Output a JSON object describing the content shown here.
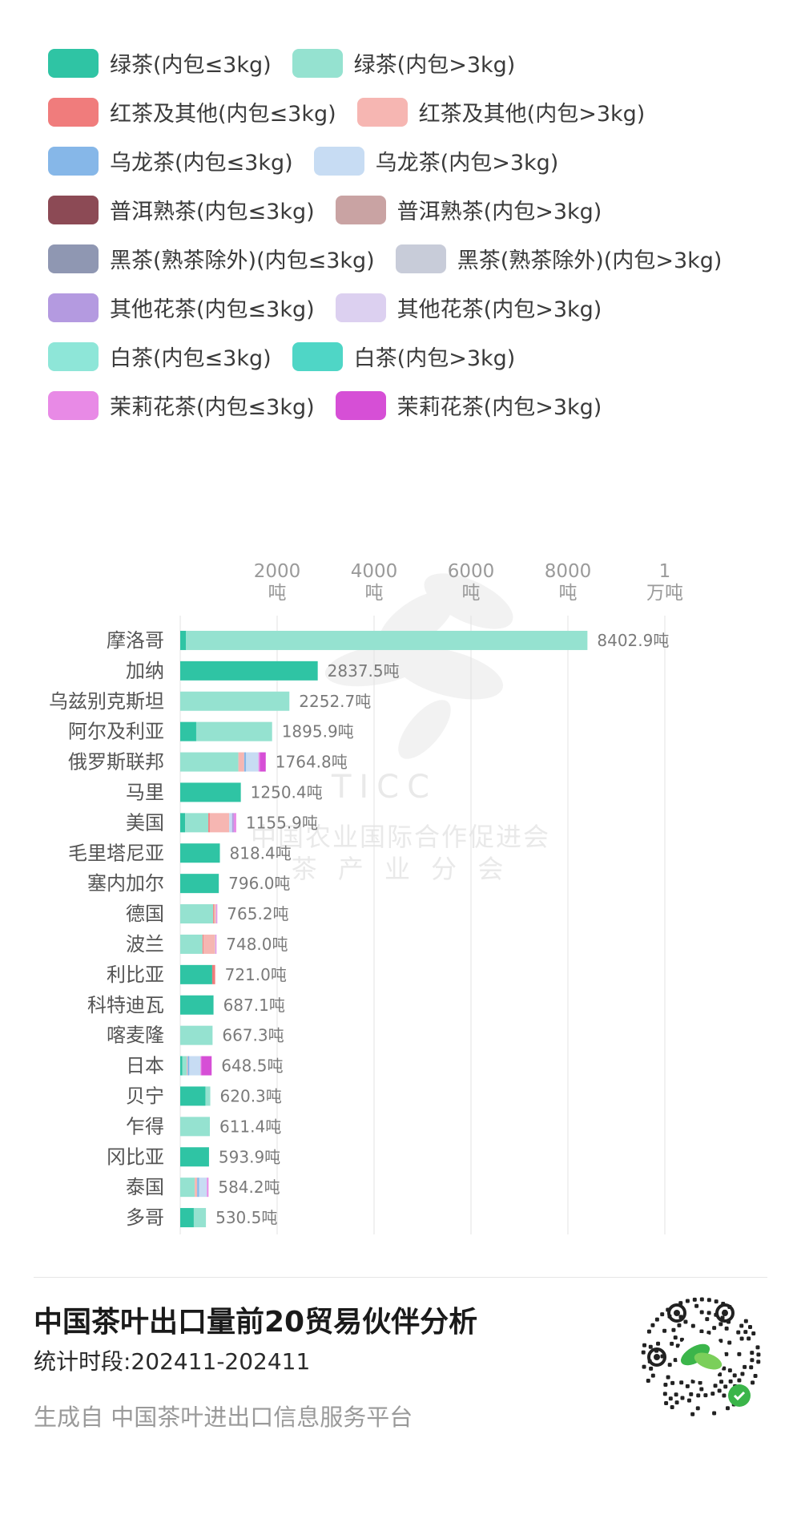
{
  "chart_data": {
    "type": "bar",
    "orientation": "horizontal",
    "stacked": true,
    "unit": "吨",
    "xlim": [
      0,
      10000
    ],
    "grid": true,
    "legend_placement": "top",
    "ticks": [
      {
        "value": 2000,
        "line1": "2000",
        "line2": "吨"
      },
      {
        "value": 4000,
        "line1": "4000",
        "line2": "吨"
      },
      {
        "value": 6000,
        "line1": "6000",
        "line2": "吨"
      },
      {
        "value": 8000,
        "line1": "8000",
        "line2": "吨"
      },
      {
        "value": 10000,
        "line1": "1",
        "line2": "万吨"
      }
    ],
    "categories": [
      "摩洛哥",
      "加纳",
      "乌兹别克斯坦",
      "阿尔及利亚",
      "俄罗斯联邦",
      "马里",
      "美国",
      "毛里塔尼亚",
      "塞内加尔",
      "德国",
      "波兰",
      "利比亚",
      "科特迪瓦",
      "喀麦隆",
      "日本",
      "贝宁",
      "乍得",
      "冈比亚",
      "泰国",
      "多哥"
    ],
    "total_labels": [
      "8402.9吨",
      "2837.5吨",
      "2252.7吨",
      "1895.9吨",
      "1764.8吨",
      "1250.4吨",
      "1155.9吨",
      "818.4吨",
      "796.0吨",
      "765.2吨",
      "748.0吨",
      "721.0吨",
      "687.1吨",
      "667.3吨",
      "648.5吨",
      "620.3吨",
      "611.4吨",
      "593.9吨",
      "584.2吨",
      "530.5吨"
    ],
    "series": [
      {
        "name": "绿茶(内包≤3kg)",
        "color": "#2fc4a4",
        "values": [
          120,
          2837.5,
          0,
          330,
          0,
          1250.4,
          100,
          818.4,
          796,
          0,
          0,
          660,
          687.1,
          0,
          45,
          520,
          0,
          593.9,
          0,
          280
        ]
      },
      {
        "name": "绿茶(内包>3kg)",
        "color": "#95e2d0",
        "values": [
          8282.9,
          0,
          2252.7,
          1565.9,
          1200,
          0,
          480,
          0,
          0,
          680,
          460,
          0,
          0,
          667.3,
          90,
          100.3,
          611.4,
          0,
          300,
          250.5
        ]
      },
      {
        "name": "红茶及其他(内包≤3kg)",
        "color": "#f07c7c",
        "values": [
          0,
          0,
          0,
          0,
          0,
          0,
          30,
          0,
          0,
          20,
          18,
          61,
          0,
          0,
          0,
          0,
          0,
          0,
          0,
          0
        ]
      },
      {
        "name": "红茶及其他(内包>3kg)",
        "color": "#f6b6b2",
        "values": [
          0,
          0,
          0,
          0,
          120,
          0,
          400,
          0,
          0,
          35,
          240,
          0,
          0,
          0,
          18,
          0,
          0,
          0,
          50,
          0
        ]
      },
      {
        "name": "乌龙茶(内包≤3kg)",
        "color": "#86b7e8",
        "values": [
          0,
          0,
          0,
          0,
          40,
          0,
          0,
          0,
          0,
          0,
          0,
          0,
          0,
          0,
          35,
          0,
          0,
          0,
          40,
          0
        ]
      },
      {
        "name": "乌龙茶(内包>3kg)",
        "color": "#c7dcf3",
        "values": [
          0,
          0,
          0,
          0,
          254.8,
          0,
          60,
          0,
          0,
          10.2,
          10,
          0,
          0,
          0,
          230,
          0,
          0,
          0,
          160,
          0
        ]
      },
      {
        "name": "普洱熟茶(内包≤3kg)",
        "color": "#8c4a55",
        "values": [
          0,
          0,
          0,
          0,
          0,
          0,
          0,
          0,
          0,
          0,
          0,
          0,
          0,
          0,
          0,
          0,
          0,
          0,
          0,
          0
        ]
      },
      {
        "name": "普洱熟茶(内包>3kg)",
        "color": "#c9a3a3",
        "values": [
          0,
          0,
          0,
          0,
          0,
          0,
          0,
          0,
          0,
          0,
          0,
          0,
          0,
          0,
          0,
          0,
          0,
          0,
          0,
          0
        ]
      },
      {
        "name": "黑茶(熟茶除外)(内包≤3kg)",
        "color": "#8f97b2",
        "values": [
          0,
          0,
          0,
          0,
          0,
          0,
          0,
          0,
          0,
          0,
          0,
          0,
          0,
          0,
          0,
          0,
          0,
          0,
          0,
          0
        ]
      },
      {
        "name": "黑茶(熟茶除外)(内包>3kg)",
        "color": "#c8ccd9",
        "values": [
          0,
          0,
          0,
          0,
          0,
          0,
          0,
          0,
          0,
          0,
          0,
          0,
          0,
          0,
          0,
          0,
          0,
          0,
          0,
          0
        ]
      },
      {
        "name": "其他花茶(内包≤3kg)",
        "color": "#b49ae0",
        "values": [
          0,
          0,
          0,
          0,
          0,
          0,
          35.9,
          0,
          0,
          0,
          0,
          0,
          0,
          0,
          0,
          0,
          0,
          0,
          0,
          0
        ]
      },
      {
        "name": "其他花茶(内包>3kg)",
        "color": "#dcd0f0",
        "values": [
          0,
          0,
          0,
          0,
          0,
          0,
          0,
          0,
          0,
          0,
          0,
          0,
          0,
          0,
          0,
          0,
          0,
          0,
          0,
          0
        ]
      },
      {
        "name": "白茶(内包≤3kg)",
        "color": "#8ee6d8",
        "values": [
          0,
          0,
          0,
          0,
          0,
          0,
          0,
          0,
          0,
          0,
          0,
          0,
          0,
          0,
          0,
          0,
          0,
          0,
          0,
          0
        ]
      },
      {
        "name": "白茶(内包>3kg)",
        "color": "#4fd6c6",
        "values": [
          0,
          0,
          0,
          0,
          0,
          0,
          0,
          0,
          0,
          0,
          0,
          0,
          0,
          0,
          0,
          0,
          0,
          0,
          0,
          0
        ]
      },
      {
        "name": "茉莉花茶(内包≤3kg)",
        "color": "#e88ae6",
        "values": [
          0,
          0,
          0,
          0,
          30,
          0,
          50,
          0,
          0,
          20,
          20,
          0,
          0,
          0,
          20,
          0,
          0,
          0,
          34.2,
          0
        ]
      },
      {
        "name": "茉莉花茶(内包>3kg)",
        "color": "#d64fd6",
        "values": [
          0,
          0,
          0,
          0,
          120,
          0,
          0,
          0,
          0,
          0,
          0,
          0,
          0,
          0,
          210.5,
          0,
          0,
          0,
          0,
          0
        ]
      }
    ]
  },
  "watermark": {
    "org": "TICC",
    "line1": "中国农业国际合作促进会",
    "line2": "茶 产 业 分 会"
  },
  "footer": {
    "title": "中国茶叶出口量前20贸易伙伴分析",
    "period": "统计时段:202411-202411",
    "source": "生成自 中国茶叶进出口信息服务平台"
  }
}
